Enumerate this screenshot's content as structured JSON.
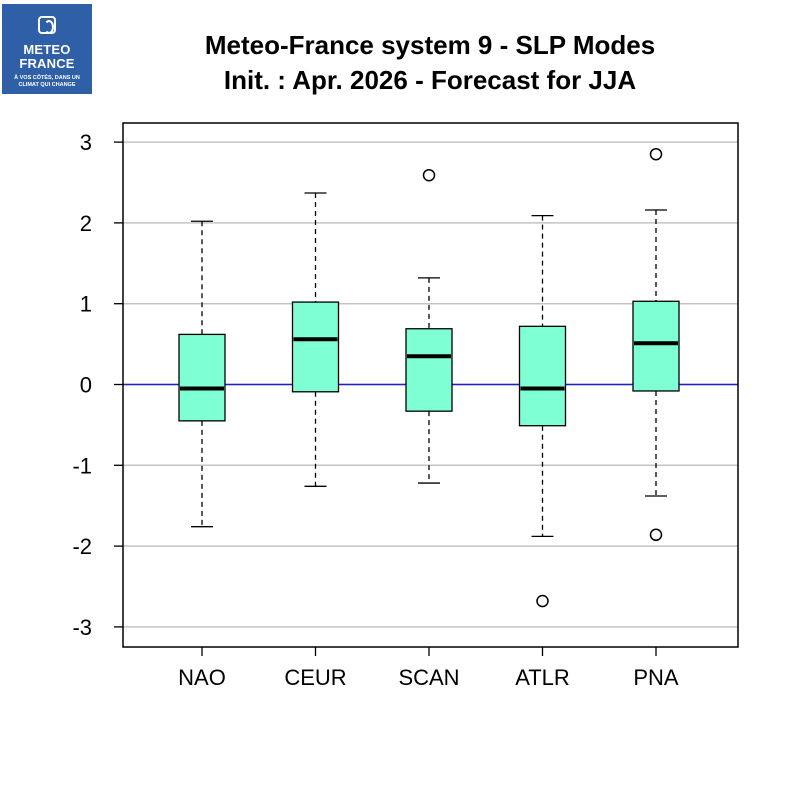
{
  "logo": {
    "line1": "METEO",
    "line2": "FRANCE",
    "tagline_1": "À VOS CÔTÉS, DANS UN",
    "tagline_2": "CLIMAT QUI CHANGE",
    "color": "#2f5fa6"
  },
  "header": {
    "title_line1": "Meteo-France system 9 - SLP Modes",
    "title_line2": "Init. : Apr. 2026 - Forecast for JJA"
  },
  "chart_data": {
    "type": "boxplot",
    "title": "Meteo-France system 9 - SLP Modes\nInit. : Apr. 2026 - Forecast for JJA",
    "xlabel": "",
    "ylabel": "",
    "ylim": [
      -3.2,
      3.25
    ],
    "yticks": [
      -3,
      -2,
      -1,
      0,
      1,
      2,
      3
    ],
    "ytick_labels": [
      "-3",
      "-2",
      "-1",
      "0",
      "1",
      "2",
      "3"
    ],
    "grid": "horizontal",
    "reference_line": {
      "y": 0,
      "color": "#1f1fcc"
    },
    "box_color": "#7fffd4",
    "categories": [
      "NAO",
      "CEUR",
      "SCAN",
      "ATLR",
      "PNA"
    ],
    "boxes": [
      {
        "label": "NAO",
        "whisker_low": -1.76,
        "q1": -0.45,
        "median": -0.05,
        "q3": 0.62,
        "whisker_high": 2.02,
        "outliers": []
      },
      {
        "label": "CEUR",
        "whisker_low": -1.26,
        "q1": -0.09,
        "median": 0.56,
        "q3": 1.02,
        "whisker_high": 2.37,
        "outliers": []
      },
      {
        "label": "SCAN",
        "whisker_low": -1.22,
        "q1": -0.33,
        "median": 0.35,
        "q3": 0.69,
        "whisker_high": 1.32,
        "outliers": [
          2.59
        ]
      },
      {
        "label": "ATLR",
        "whisker_low": -1.88,
        "q1": -0.51,
        "median": -0.05,
        "q3": 0.72,
        "whisker_high": 2.09,
        "outliers": [
          -2.68
        ]
      },
      {
        "label": "PNA",
        "whisker_low": -1.38,
        "q1": -0.08,
        "median": 0.51,
        "q3": 1.03,
        "whisker_high": 2.16,
        "outliers": [
          2.85,
          -1.86
        ]
      }
    ]
  }
}
